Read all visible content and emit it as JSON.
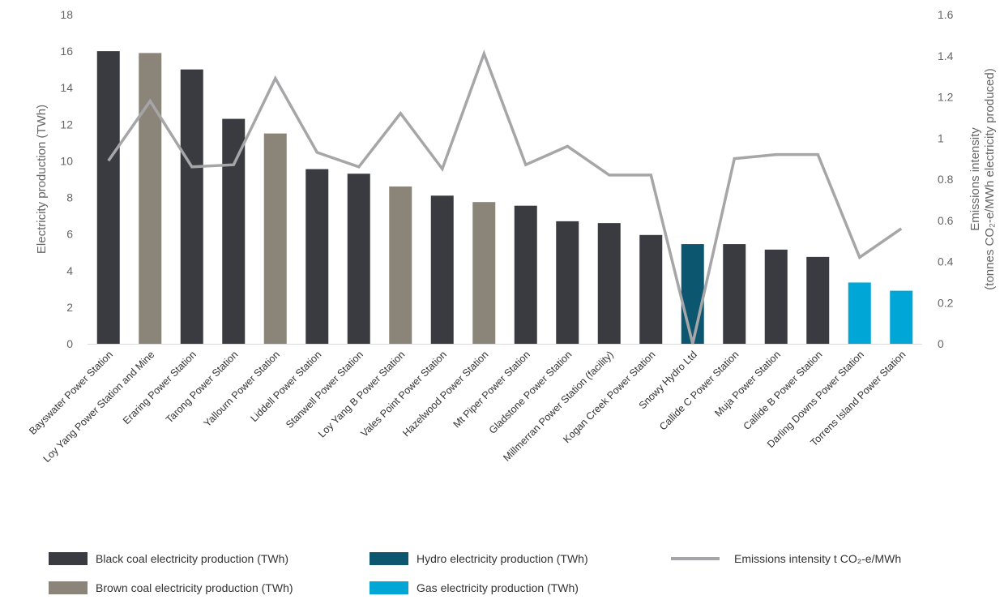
{
  "chart_data": {
    "type": "bar",
    "categories": [
      "Bayswater Power Station",
      "Loy Yang Power Station and Mine",
      "Eraring Power Station",
      "Tarong Power Station",
      "Yallourn Power Station",
      "Liddell Power Station",
      "Stanwell Power Station",
      "Loy Yang B Power Station",
      "Vales Point Power Station",
      "Hazelwood Power Station",
      "Mt Piper Power Station",
      "Gladstone Power Station",
      "Millmerran Power Station (facility)",
      "Kogan Creek Power Station",
      "Snowy Hydro Ltd",
      "Callide C Power Station",
      "Muja Power Station",
      "Callide B Power Station",
      "Darling Downs Power Station",
      "Torrens Island Power Station"
    ],
    "bar_values": [
      16.0,
      15.9,
      15.0,
      12.3,
      11.5,
      9.55,
      9.3,
      8.6,
      8.1,
      7.75,
      7.55,
      6.7,
      6.6,
      5.95,
      5.45,
      5.45,
      5.15,
      4.75,
      3.35,
      2.9
    ],
    "bar_types": [
      "black",
      "brown",
      "black",
      "black",
      "brown",
      "black",
      "black",
      "brown",
      "black",
      "brown",
      "black",
      "black",
      "black",
      "black",
      "hydro",
      "black",
      "black",
      "black",
      "gas",
      "gas"
    ],
    "line_values": [
      0.89,
      1.18,
      0.86,
      0.87,
      1.29,
      0.93,
      0.86,
      1.12,
      0.85,
      1.41,
      0.87,
      0.96,
      0.82,
      0.82,
      0.0,
      0.9,
      0.92,
      0.92,
      0.42,
      0.56
    ],
    "colors": {
      "black": "#3a3b41",
      "brown": "#8b8579",
      "hydro": "#0d5670",
      "gas": "#00a7d6",
      "line": "#a6a6a8"
    },
    "y_left": {
      "label": "Electricity production (TWh)",
      "min": 0,
      "max": 18,
      "ticks": [
        "0",
        "2",
        "4",
        "6",
        "8",
        "10",
        "12",
        "14",
        "16",
        "18"
      ]
    },
    "y_right": {
      "label_line1": "Emissions intensity",
      "label_line2": "(tonnes CO₂-e/MWh electricity produced)",
      "min": 0,
      "max": 1.6,
      "ticks": [
        "0",
        "0.2",
        "0.4",
        "0.6",
        "0.8",
        "1",
        "1.2",
        "1.4",
        "1.6"
      ]
    },
    "legend": [
      {
        "key": "black",
        "label": "Black coal electricity production (TWh)",
        "kind": "box"
      },
      {
        "key": "hydro",
        "label": "Hydro electricity production (TWh)",
        "kind": "box"
      },
      {
        "key": "line",
        "label": "Emissions intensity t CO₂-e/MWh",
        "kind": "line"
      },
      {
        "key": "brown",
        "label": "Brown coal electricity production (TWh)",
        "kind": "box"
      },
      {
        "key": "gas",
        "label": "Gas electricity production (TWh)",
        "kind": "box"
      }
    ],
    "legend_position": "bottom",
    "grid": false
  }
}
